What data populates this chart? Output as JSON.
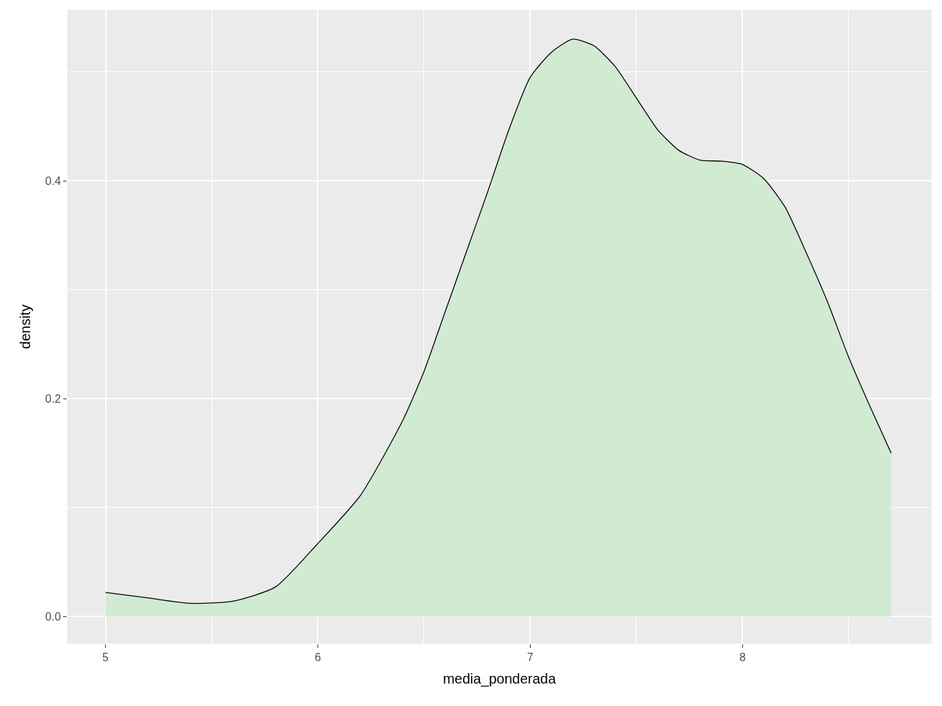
{
  "chart_data": {
    "type": "area",
    "xlabel": "media_ponderada",
    "ylabel": "density",
    "x": [
      5.0,
      5.2,
      5.4,
      5.6,
      5.8,
      6.0,
      6.2,
      6.4,
      6.5,
      6.6,
      6.7,
      6.8,
      6.9,
      7.0,
      7.1,
      7.2,
      7.3,
      7.4,
      7.5,
      7.6,
      7.7,
      7.8,
      7.9,
      8.0,
      8.1,
      8.2,
      8.3,
      8.4,
      8.5,
      8.6,
      8.7
    ],
    "series": [
      {
        "color": "#d0ebd1",
        "values": [
          0.022,
          0.017,
          0.012,
          0.014,
          0.027,
          0.067,
          0.111,
          0.18,
          0.225,
          0.28,
          0.335,
          0.39,
          0.447,
          0.495,
          0.518,
          0.53,
          0.524,
          0.505,
          0.476,
          0.447,
          0.428,
          0.419,
          0.418,
          0.415,
          0.402,
          0.376,
          0.334,
          0.289,
          0.238,
          0.193,
          0.15
        ]
      }
    ],
    "xlim": [
      4.82,
      8.89
    ],
    "ylim": [
      -0.025,
      0.557
    ],
    "xticks": [
      5,
      6,
      7,
      8
    ],
    "yticks": [
      {
        "value": 0,
        "label": "0.0"
      },
      {
        "value": 0.2,
        "label": "0.2"
      },
      {
        "value": 0.4,
        "label": "0.4"
      }
    ],
    "grid": true
  }
}
